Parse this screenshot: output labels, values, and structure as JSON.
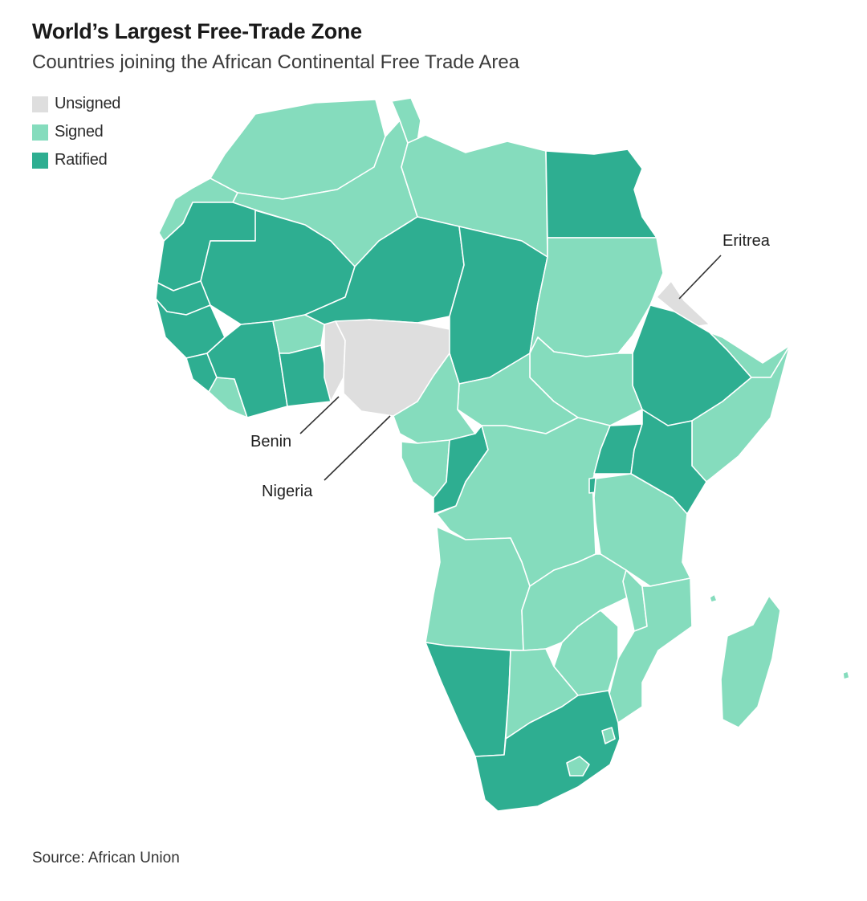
{
  "title": "World’s Largest Free-Trade Zone",
  "subtitle": "Countries joining the African Continental Free Trade Area",
  "legend": [
    {
      "key": "unsigned",
      "label": "Unsigned",
      "color": "#dedede"
    },
    {
      "key": "signed",
      "label": "Signed",
      "color": "#85dcbd"
    },
    {
      "key": "ratified",
      "label": "Ratified",
      "color": "#2eae91"
    }
  ],
  "callouts": {
    "eritrea": "Eritrea",
    "benin": "Benin",
    "nigeria": "Nigeria"
  },
  "source": "Source: African Union"
}
